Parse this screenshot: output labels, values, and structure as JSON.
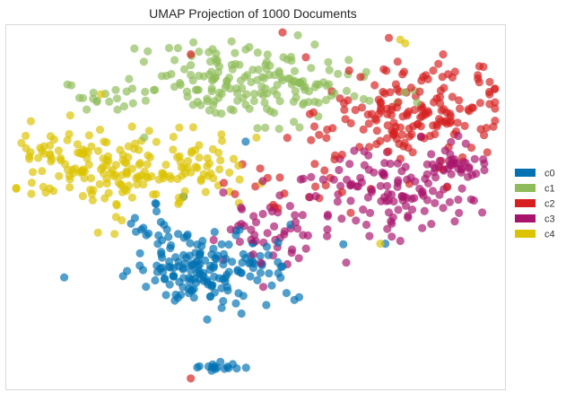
{
  "chart_data": {
    "type": "scatter",
    "title": "UMAP Projection of 1000 Documents",
    "xlabel": "",
    "ylabel": "",
    "grid": false,
    "legend_position": "right",
    "axis_ticks": "none",
    "n_points": 1000,
    "series": [
      {
        "name": "c0",
        "color": "#0072b2",
        "count": 200,
        "clusters": [
          {
            "cx": 0.41,
            "cy": 0.33,
            "sx": 0.075,
            "sy": 0.055,
            "n": 170
          },
          {
            "cx": 0.42,
            "cy": 0.06,
            "sx": 0.025,
            "sy": 0.008,
            "n": 16
          },
          {
            "cx": 0.3,
            "cy": 0.45,
            "sx": 0.03,
            "sy": 0.03,
            "n": 14
          }
        ]
      },
      {
        "name": "c1",
        "color": "#8fbc5a",
        "count": 200,
        "clusters": [
          {
            "cx": 0.49,
            "cy": 0.84,
            "sx": 0.11,
            "sy": 0.055,
            "n": 185
          },
          {
            "cx": 0.2,
            "cy": 0.8,
            "sx": 0.035,
            "sy": 0.025,
            "n": 15
          }
        ]
      },
      {
        "name": "c2",
        "color": "#d62020",
        "count": 200,
        "clusters": [
          {
            "cx": 0.82,
            "cy": 0.76,
            "sx": 0.09,
            "sy": 0.075,
            "n": 180
          },
          {
            "cx": 0.6,
            "cy": 0.55,
            "sx": 0.07,
            "sy": 0.05,
            "n": 20
          }
        ]
      },
      {
        "name": "c3",
        "color": "#a8146b",
        "count": 200,
        "clusters": [
          {
            "cx": 0.78,
            "cy": 0.55,
            "sx": 0.08,
            "sy": 0.06,
            "n": 100
          },
          {
            "cx": 0.55,
            "cy": 0.45,
            "sx": 0.08,
            "sy": 0.07,
            "n": 60
          },
          {
            "cx": 0.9,
            "cy": 0.62,
            "sx": 0.04,
            "sy": 0.03,
            "n": 40
          }
        ]
      },
      {
        "name": "c4",
        "color": "#dcc300",
        "count": 200,
        "clusters": [
          {
            "cx": 0.25,
            "cy": 0.6,
            "sx": 0.09,
            "sy": 0.06,
            "n": 140
          },
          {
            "cx": 0.1,
            "cy": 0.63,
            "sx": 0.04,
            "sy": 0.05,
            "n": 40
          },
          {
            "cx": 0.43,
            "cy": 0.62,
            "sx": 0.05,
            "sy": 0.04,
            "n": 20
          }
        ]
      }
    ],
    "outliers": [
      {
        "series": "c4",
        "x": 0.79,
        "y": 0.96
      },
      {
        "series": "c4",
        "x": 0.8,
        "y": 0.95
      },
      {
        "series": "c2",
        "x": 0.37,
        "y": 0.92
      },
      {
        "series": "c4",
        "x": 0.19,
        "y": 0.81
      },
      {
        "series": "c0",
        "x": 0.48,
        "y": 0.68
      },
      {
        "series": "c0",
        "x": 0.76,
        "y": 0.4
      },
      {
        "series": "c4",
        "x": 0.75,
        "y": 0.4
      },
      {
        "series": "c2",
        "x": 0.37,
        "y": 0.03
      }
    ]
  }
}
